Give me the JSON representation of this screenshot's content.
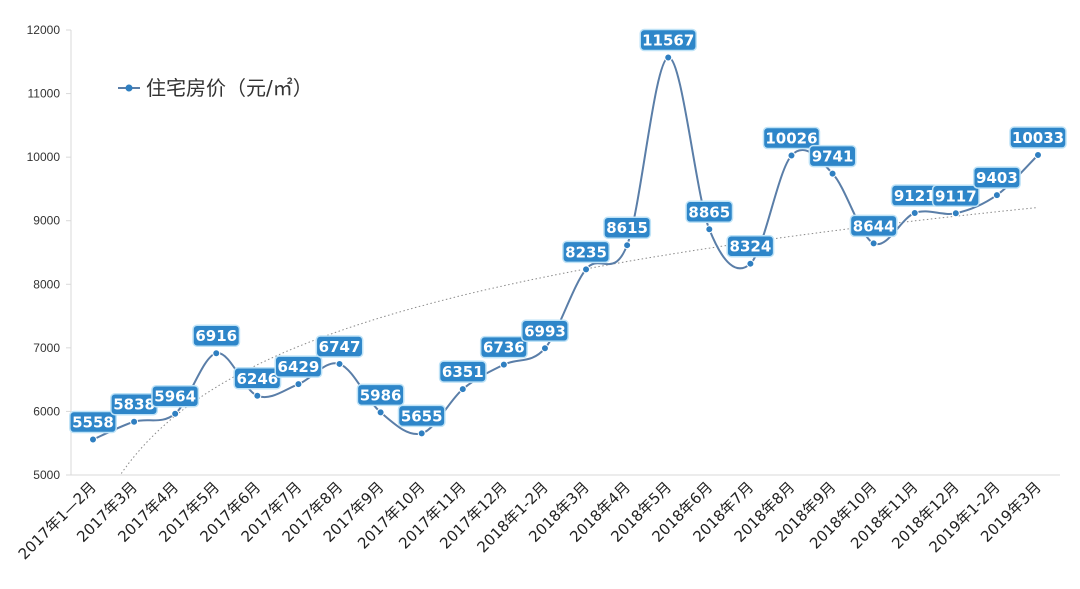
{
  "chart_data": {
    "type": "line",
    "title": "",
    "xlabel": "",
    "ylabel": "",
    "ylim": [
      5000,
      12000
    ],
    "yticks": [
      "5000",
      "6000",
      "7000",
      "8000",
      "9000",
      "10000",
      "11000",
      "12000"
    ],
    "grid": false,
    "legend": "top-left",
    "categories": [
      "2017年1—2月",
      "2017年3月",
      "2017年4月",
      "2017年5月",
      "2017年6月",
      "2017年7月",
      "2017年8月",
      "2017年9月",
      "2017年10月",
      "2017年11月",
      "2017年12月",
      "2018年1-2月",
      "2018年3月",
      "2018年4月",
      "2018年5月",
      "2018年6月",
      "2018年7月",
      "2018年8月",
      "2018年9月",
      "2018年10月",
      "2018年11月",
      "2018年12月",
      "2019年1-2月",
      "2019年3月"
    ],
    "series": [
      {
        "name": "住宅房价（元/㎡）",
        "values": [
          5558,
          5838,
          5964,
          6916,
          6246,
          6429,
          6747,
          5986,
          5655,
          6351,
          6736,
          6993,
          8235,
          8615,
          11567,
          8865,
          8324,
          10026,
          9741,
          8644,
          9121,
          9117,
          9403,
          10033
        ],
        "labels": [
          "5558",
          "5838",
          "5964",
          "6916",
          "6246",
          "6429",
          "6747",
          "5986",
          "5655",
          "6351",
          "6736",
          "6993",
          "8235",
          "8615",
          "11567",
          "8865",
          "8324",
          "10026",
          "9741",
          "8644",
          "9121",
          "9117",
          "9403",
          "10033"
        ]
      }
    ],
    "trendline": "logarithmic",
    "colors": {
      "line": "#5a7ea8",
      "marker": "#2f7fc1",
      "label_bg": "#2e86c9",
      "label_border": "#bfe3f7",
      "droplines": "#a7d6e6",
      "trend": "#8a8a8a",
      "axis": "#d9d9d9"
    }
  }
}
